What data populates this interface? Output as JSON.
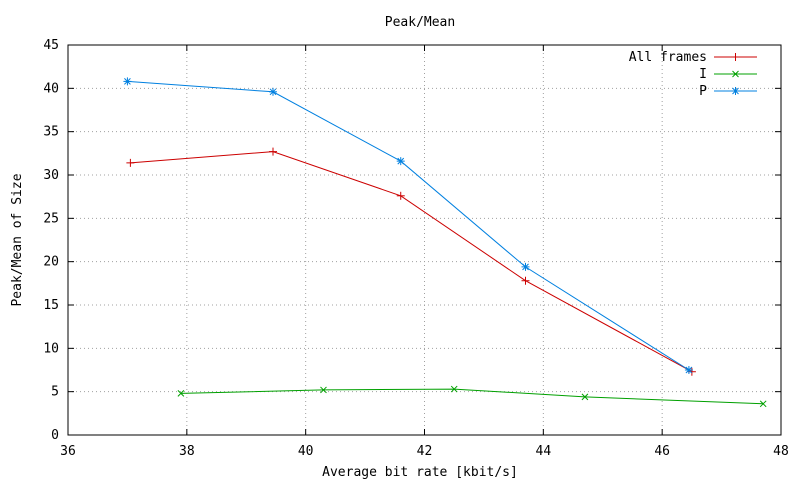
{
  "chart_data": {
    "type": "line",
    "title": "Peak/Mean",
    "xlabel": "Average bit rate [kbit/s]",
    "ylabel": "Peak/Mean of Size",
    "xlim": [
      36,
      48
    ],
    "ylim": [
      0,
      45
    ],
    "xticks": [
      36,
      38,
      40,
      42,
      44,
      46,
      48
    ],
    "yticks": [
      0,
      5,
      10,
      15,
      20,
      25,
      30,
      35,
      40,
      45
    ],
    "grid": true,
    "legend_position": "top-right",
    "series": [
      {
        "name": "All frames",
        "color": "#cc0000",
        "marker": "plus",
        "x": [
          37.05,
          39.45,
          41.6,
          43.7,
          46.5
        ],
        "y": [
          31.4,
          32.7,
          27.6,
          17.8,
          7.3
        ]
      },
      {
        "name": "I",
        "color": "#00a000",
        "marker": "cross",
        "x": [
          37.9,
          40.3,
          42.5,
          44.7,
          47.7
        ],
        "y": [
          4.8,
          5.2,
          5.3,
          4.4,
          3.6
        ]
      },
      {
        "name": "P",
        "color": "#0080e0",
        "marker": "star",
        "x": [
          37.0,
          39.45,
          41.6,
          43.7,
          46.45
        ],
        "y": [
          40.8,
          39.6,
          31.6,
          19.4,
          7.5
        ]
      }
    ]
  }
}
